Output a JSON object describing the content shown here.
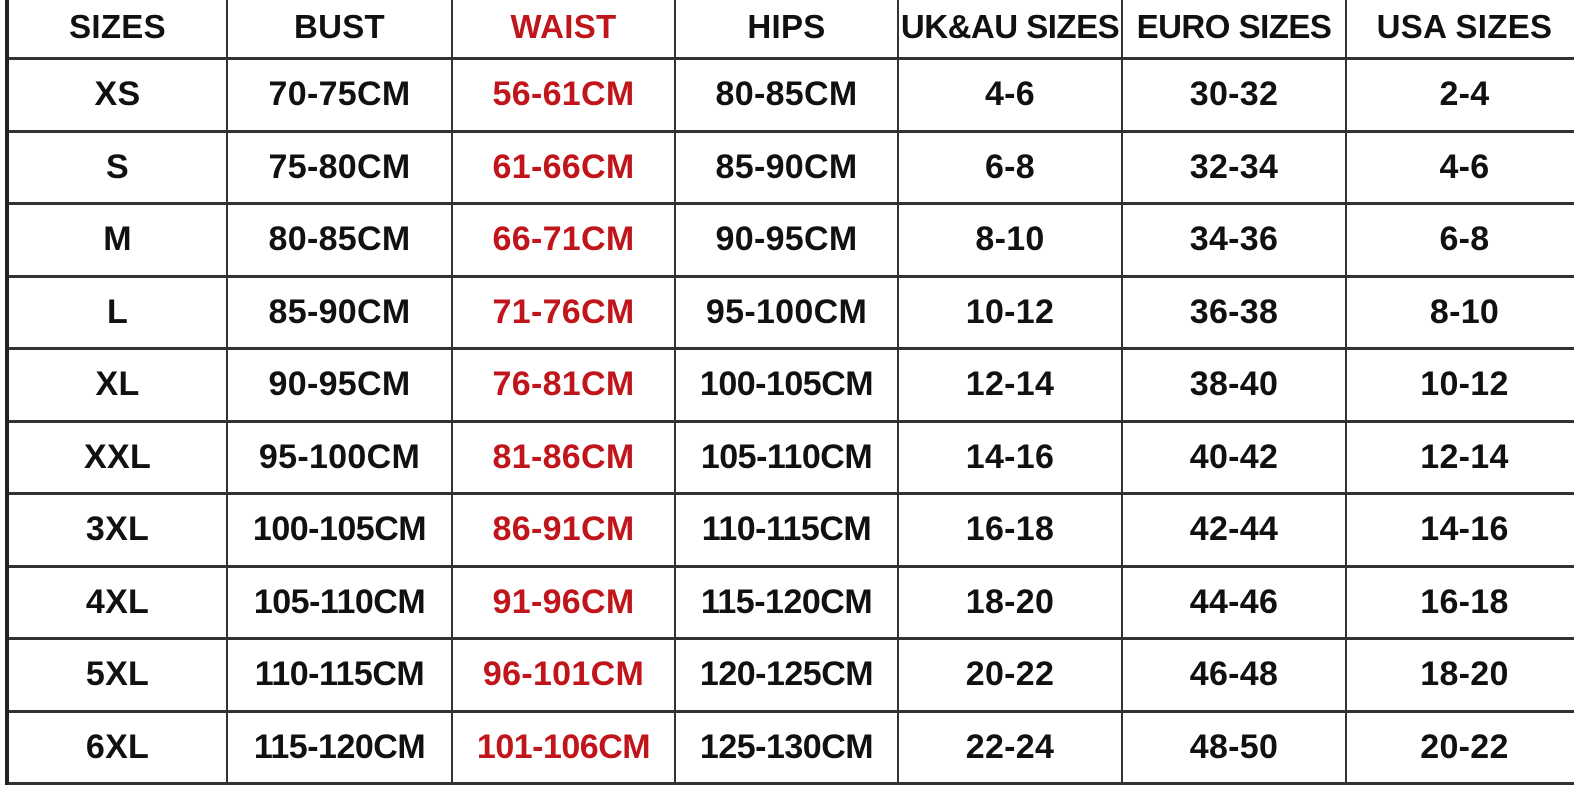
{
  "colors": {
    "text": "#111111",
    "waist_accent": "#c0161b",
    "grid": "#333333"
  },
  "headers": [
    "SIZES",
    "BUST",
    "WAIST",
    "HIPS",
    "UK&AU SIZES",
    "EURO SIZES",
    "USA SIZES"
  ],
  "rows": [
    [
      "XS",
      "70-75CM",
      "56-61CM",
      "80-85CM",
      "4-6",
      "30-32",
      "2-4"
    ],
    [
      "S",
      "75-80CM",
      "61-66CM",
      "85-90CM",
      "6-8",
      "32-34",
      "4-6"
    ],
    [
      "M",
      "80-85CM",
      "66-71CM",
      "90-95CM",
      "8-10",
      "34-36",
      "6-8"
    ],
    [
      "L",
      "85-90CM",
      "71-76CM",
      "95-100CM",
      "10-12",
      "36-38",
      "8-10"
    ],
    [
      "XL",
      "90-95CM",
      "76-81CM",
      "100-105CM",
      "12-14",
      "38-40",
      "10-12"
    ],
    [
      "XXL",
      "95-100CM",
      "81-86CM",
      "105-110CM",
      "14-16",
      "40-42",
      "12-14"
    ],
    [
      "3XL",
      "100-105CM",
      "86-91CM",
      "110-115CM",
      "16-18",
      "42-44",
      "14-16"
    ],
    [
      "4XL",
      "105-110CM",
      "91-96CM",
      "115-120CM",
      "18-20",
      "44-46",
      "16-18"
    ],
    [
      "5XL",
      "110-115CM",
      "96-101CM",
      "120-125CM",
      "20-22",
      "46-48",
      "18-20"
    ],
    [
      "6XL",
      "115-120CM",
      "101-106CM",
      "125-130CM",
      "22-24",
      "48-50",
      "20-22"
    ]
  ]
}
